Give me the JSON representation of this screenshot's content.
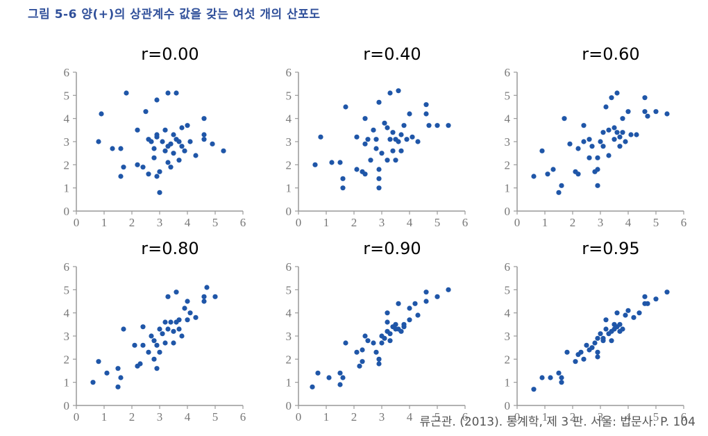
{
  "caption": "그림 5-6   양(+)의 상관계수 값을 갖는 여섯 개의 산포도",
  "source": "류근관. (2013). 통계학, 제 3 판. 서울: 법문사. P. 104",
  "colors": {
    "point": "#1f56a8",
    "axis": "#999999",
    "caption": "#2f4f9a"
  },
  "chart_data": [
    {
      "type": "scatter",
      "title": "r=0.00",
      "x_ticks": [
        "0",
        "1",
        "2",
        "3",
        "4",
        "5",
        "6"
      ],
      "y_ticks": [
        "0",
        "1",
        "2",
        "3",
        "4",
        "5",
        "6"
      ],
      "xlim": [
        0,
        6
      ],
      "ylim": [
        0,
        6
      ],
      "grid": false,
      "points": [
        [
          0.8,
          3.0
        ],
        [
          0.9,
          4.2
        ],
        [
          1.3,
          2.7
        ],
        [
          1.6,
          2.7
        ],
        [
          1.6,
          1.5
        ],
        [
          1.7,
          1.9
        ],
        [
          1.8,
          5.1
        ],
        [
          2.2,
          3.5
        ],
        [
          2.2,
          2.0
        ],
        [
          2.4,
          1.9
        ],
        [
          2.5,
          4.3
        ],
        [
          2.6,
          1.6
        ],
        [
          2.6,
          3.1
        ],
        [
          2.7,
          3.0
        ],
        [
          2.8,
          2.7
        ],
        [
          2.8,
          2.3
        ],
        [
          2.9,
          3.3
        ],
        [
          2.9,
          3.2
        ],
        [
          2.9,
          1.5
        ],
        [
          2.9,
          4.8
        ],
        [
          3.0,
          1.7
        ],
        [
          3.0,
          0.8
        ],
        [
          3.1,
          3.0
        ],
        [
          3.2,
          2.6
        ],
        [
          3.2,
          3.5
        ],
        [
          3.3,
          5.1
        ],
        [
          3.3,
          2.8
        ],
        [
          3.3,
          2.1
        ],
        [
          3.4,
          2.9
        ],
        [
          3.4,
          1.9
        ],
        [
          3.5,
          3.3
        ],
        [
          3.5,
          2.5
        ],
        [
          3.6,
          3.1
        ],
        [
          3.6,
          5.1
        ],
        [
          3.7,
          3.0
        ],
        [
          3.7,
          2.2
        ],
        [
          3.8,
          2.8
        ],
        [
          3.8,
          3.6
        ],
        [
          3.9,
          2.6
        ],
        [
          4.0,
          3.7
        ],
        [
          4.1,
          3.0
        ],
        [
          4.3,
          2.4
        ],
        [
          4.6,
          3.3
        ],
        [
          4.6,
          3.1
        ],
        [
          4.6,
          4.0
        ],
        [
          4.9,
          2.9
        ],
        [
          5.3,
          2.6
        ]
      ]
    },
    {
      "type": "scatter",
      "title": "r=0.40",
      "x_ticks": [
        "0",
        "1",
        "2",
        "3",
        "4",
        "5",
        "6"
      ],
      "y_ticks": [
        "0",
        "1",
        "2",
        "3",
        "4",
        "5",
        "6"
      ],
      "xlim": [
        0,
        6
      ],
      "ylim": [
        0,
        6
      ],
      "grid": false,
      "points": [
        [
          0.6,
          2.0
        ],
        [
          0.8,
          3.2
        ],
        [
          1.2,
          2.1
        ],
        [
          1.5,
          2.1
        ],
        [
          1.6,
          1.4
        ],
        [
          1.6,
          1.0
        ],
        [
          1.7,
          4.5
        ],
        [
          2.1,
          3.2
        ],
        [
          2.1,
          1.8
        ],
        [
          2.3,
          1.7
        ],
        [
          2.4,
          2.9
        ],
        [
          2.4,
          4.0
        ],
        [
          2.4,
          1.6
        ],
        [
          2.5,
          3.1
        ],
        [
          2.6,
          2.2
        ],
        [
          2.7,
          3.5
        ],
        [
          2.8,
          3.1
        ],
        [
          2.8,
          2.7
        ],
        [
          2.9,
          1.8
        ],
        [
          2.9,
          1.4
        ],
        [
          2.9,
          1.0
        ],
        [
          2.9,
          4.7
        ],
        [
          3.0,
          2.5
        ],
        [
          3.1,
          3.8
        ],
        [
          3.2,
          3.6
        ],
        [
          3.2,
          2.2
        ],
        [
          3.3,
          3.1
        ],
        [
          3.3,
          5.1
        ],
        [
          3.4,
          3.4
        ],
        [
          3.4,
          2.6
        ],
        [
          3.5,
          3.1
        ],
        [
          3.5,
          2.2
        ],
        [
          3.6,
          5.2
        ],
        [
          3.6,
          3.0
        ],
        [
          3.7,
          3.3
        ],
        [
          3.7,
          2.6
        ],
        [
          3.8,
          3.7
        ],
        [
          3.9,
          3.1
        ],
        [
          4.0,
          4.2
        ],
        [
          4.1,
          3.2
        ],
        [
          4.3,
          3.0
        ],
        [
          4.6,
          4.2
        ],
        [
          4.6,
          4.6
        ],
        [
          4.7,
          3.7
        ],
        [
          5.0,
          3.7
        ],
        [
          5.4,
          3.7
        ]
      ]
    },
    {
      "type": "scatter",
      "title": "r=0.60",
      "x_ticks": [
        "0",
        "1",
        "2",
        "3",
        "4",
        "5",
        "6"
      ],
      "y_ticks": [
        "0",
        "1",
        "2",
        "3",
        "4",
        "5",
        "6"
      ],
      "xlim": [
        0,
        6
      ],
      "ylim": [
        0,
        6
      ],
      "grid": false,
      "points": [
        [
          0.6,
          1.5
        ],
        [
          0.9,
          2.6
        ],
        [
          1.1,
          1.6
        ],
        [
          1.3,
          1.8
        ],
        [
          1.5,
          0.8
        ],
        [
          1.6,
          1.1
        ],
        [
          1.7,
          4.0
        ],
        [
          1.9,
          2.9
        ],
        [
          2.1,
          1.7
        ],
        [
          2.2,
          2.7
        ],
        [
          2.2,
          1.6
        ],
        [
          2.4,
          3.7
        ],
        [
          2.4,
          3.0
        ],
        [
          2.6,
          2.3
        ],
        [
          2.6,
          3.1
        ],
        [
          2.7,
          2.8
        ],
        [
          2.8,
          1.7
        ],
        [
          2.9,
          1.8
        ],
        [
          2.9,
          1.1
        ],
        [
          2.9,
          2.3
        ],
        [
          3.0,
          3.0
        ],
        [
          3.1,
          3.4
        ],
        [
          3.1,
          2.8
        ],
        [
          3.2,
          4.5
        ],
        [
          3.3,
          2.4
        ],
        [
          3.3,
          3.5
        ],
        [
          3.4,
          4.9
        ],
        [
          3.5,
          3.6
        ],
        [
          3.5,
          3.1
        ],
        [
          3.6,
          5.1
        ],
        [
          3.6,
          3.4
        ],
        [
          3.7,
          2.8
        ],
        [
          3.7,
          3.2
        ],
        [
          3.8,
          4.0
        ],
        [
          3.8,
          3.4
        ],
        [
          3.9,
          3.0
        ],
        [
          4.0,
          4.3
        ],
        [
          4.1,
          3.3
        ],
        [
          4.3,
          3.3
        ],
        [
          4.6,
          4.3
        ],
        [
          4.6,
          4.9
        ],
        [
          4.7,
          4.1
        ],
        [
          5.0,
          4.3
        ],
        [
          5.4,
          4.2
        ]
      ]
    },
    {
      "type": "scatter",
      "title": "r=0.80",
      "x_ticks": [
        "0",
        "1",
        "2",
        "3",
        "4",
        "5",
        "6"
      ],
      "y_ticks": [
        "0",
        "1",
        "2",
        "3",
        "4",
        "5",
        "6"
      ],
      "xlim": [
        0,
        6
      ],
      "ylim": [
        0,
        6
      ],
      "grid": false,
      "points": [
        [
          0.6,
          1.0
        ],
        [
          0.8,
          1.9
        ],
        [
          1.1,
          1.4
        ],
        [
          1.5,
          1.6
        ],
        [
          1.5,
          0.8
        ],
        [
          1.6,
          1.2
        ],
        [
          1.7,
          3.3
        ],
        [
          2.1,
          2.6
        ],
        [
          2.2,
          1.7
        ],
        [
          2.3,
          1.8
        ],
        [
          2.4,
          2.6
        ],
        [
          2.4,
          3.4
        ],
        [
          2.6,
          2.3
        ],
        [
          2.7,
          3.0
        ],
        [
          2.8,
          2.8
        ],
        [
          2.8,
          2.0
        ],
        [
          2.9,
          1.6
        ],
        [
          2.9,
          2.6
        ],
        [
          3.0,
          3.3
        ],
        [
          3.0,
          2.3
        ],
        [
          3.1,
          3.1
        ],
        [
          3.2,
          3.6
        ],
        [
          3.2,
          2.7
        ],
        [
          3.3,
          3.3
        ],
        [
          3.3,
          4.7
        ],
        [
          3.4,
          3.6
        ],
        [
          3.5,
          3.2
        ],
        [
          3.5,
          2.7
        ],
        [
          3.6,
          3.6
        ],
        [
          3.6,
          4.9
        ],
        [
          3.7,
          3.3
        ],
        [
          3.7,
          3.7
        ],
        [
          3.8,
          3.0
        ],
        [
          3.9,
          4.2
        ],
        [
          4.0,
          3.7
        ],
        [
          4.0,
          4.5
        ],
        [
          4.1,
          4.0
        ],
        [
          4.3,
          3.8
        ],
        [
          4.6,
          4.5
        ],
        [
          4.6,
          4.7
        ],
        [
          4.7,
          5.1
        ],
        [
          5.0,
          4.7
        ]
      ]
    },
    {
      "type": "scatter",
      "title": "r=0.90",
      "x_ticks": [
        "0",
        "1",
        "2",
        "3",
        "4",
        "5",
        "6"
      ],
      "y_ticks": [
        "0",
        "1",
        "2",
        "3",
        "4",
        "5",
        "6"
      ],
      "xlim": [
        0,
        6
      ],
      "ylim": [
        0,
        6
      ],
      "grid": false,
      "points": [
        [
          0.5,
          0.8
        ],
        [
          0.7,
          1.4
        ],
        [
          1.1,
          1.2
        ],
        [
          1.5,
          1.4
        ],
        [
          1.5,
          0.9
        ],
        [
          1.6,
          1.2
        ],
        [
          1.7,
          2.7
        ],
        [
          2.1,
          2.3
        ],
        [
          2.2,
          1.7
        ],
        [
          2.3,
          1.9
        ],
        [
          2.3,
          2.4
        ],
        [
          2.4,
          3.0
        ],
        [
          2.5,
          2.8
        ],
        [
          2.7,
          2.7
        ],
        [
          2.8,
          2.3
        ],
        [
          2.9,
          2.0
        ],
        [
          2.9,
          1.8
        ],
        [
          3.0,
          2.7
        ],
        [
          3.0,
          3.0
        ],
        [
          3.1,
          2.9
        ],
        [
          3.2,
          3.2
        ],
        [
          3.2,
          3.6
        ],
        [
          3.2,
          4.0
        ],
        [
          3.3,
          2.8
        ],
        [
          3.3,
          3.1
        ],
        [
          3.4,
          3.4
        ],
        [
          3.5,
          3.3
        ],
        [
          3.5,
          3.5
        ],
        [
          3.6,
          3.3
        ],
        [
          3.6,
          4.4
        ],
        [
          3.7,
          3.2
        ],
        [
          3.8,
          3.5
        ],
        [
          3.8,
          3.4
        ],
        [
          4.0,
          4.2
        ],
        [
          4.0,
          3.7
        ],
        [
          4.2,
          4.4
        ],
        [
          4.3,
          3.9
        ],
        [
          4.6,
          4.9
        ],
        [
          4.6,
          4.5
        ],
        [
          5.0,
          4.7
        ],
        [
          5.4,
          5.0
        ]
      ]
    },
    {
      "type": "scatter",
      "title": "r=0.95",
      "x_ticks": [
        "0",
        "1",
        "2",
        "3",
        "4",
        "5",
        "6"
      ],
      "y_ticks": [
        "0",
        "1",
        "2",
        "3",
        "4",
        "5",
        "6"
      ],
      "xlim": [
        0,
        6
      ],
      "ylim": [
        0,
        6
      ],
      "grid": false,
      "points": [
        [
          0.6,
          0.7
        ],
        [
          0.9,
          1.2
        ],
        [
          1.2,
          1.2
        ],
        [
          1.5,
          1.4
        ],
        [
          1.6,
          1.2
        ],
        [
          1.6,
          1.0
        ],
        [
          1.8,
          2.3
        ],
        [
          2.1,
          1.9
        ],
        [
          2.2,
          2.2
        ],
        [
          2.3,
          2.3
        ],
        [
          2.4,
          2.0
        ],
        [
          2.5,
          2.6
        ],
        [
          2.6,
          2.4
        ],
        [
          2.7,
          2.5
        ],
        [
          2.8,
          2.7
        ],
        [
          2.9,
          2.3
        ],
        [
          2.9,
          2.1
        ],
        [
          2.9,
          2.9
        ],
        [
          3.0,
          3.1
        ],
        [
          3.1,
          2.8
        ],
        [
          3.1,
          2.9
        ],
        [
          3.2,
          3.3
        ],
        [
          3.2,
          3.7
        ],
        [
          3.3,
          3.1
        ],
        [
          3.4,
          3.2
        ],
        [
          3.4,
          2.8
        ],
        [
          3.5,
          3.3
        ],
        [
          3.5,
          3.5
        ],
        [
          3.6,
          3.4
        ],
        [
          3.6,
          4.0
        ],
        [
          3.7,
          3.2
        ],
        [
          3.7,
          3.5
        ],
        [
          3.8,
          3.3
        ],
        [
          3.9,
          3.9
        ],
        [
          4.0,
          4.1
        ],
        [
          4.2,
          3.8
        ],
        [
          4.4,
          4.0
        ],
        [
          4.6,
          4.4
        ],
        [
          4.6,
          4.7
        ],
        [
          4.7,
          4.4
        ],
        [
          5.0,
          4.6
        ],
        [
          5.4,
          4.9
        ]
      ]
    }
  ]
}
